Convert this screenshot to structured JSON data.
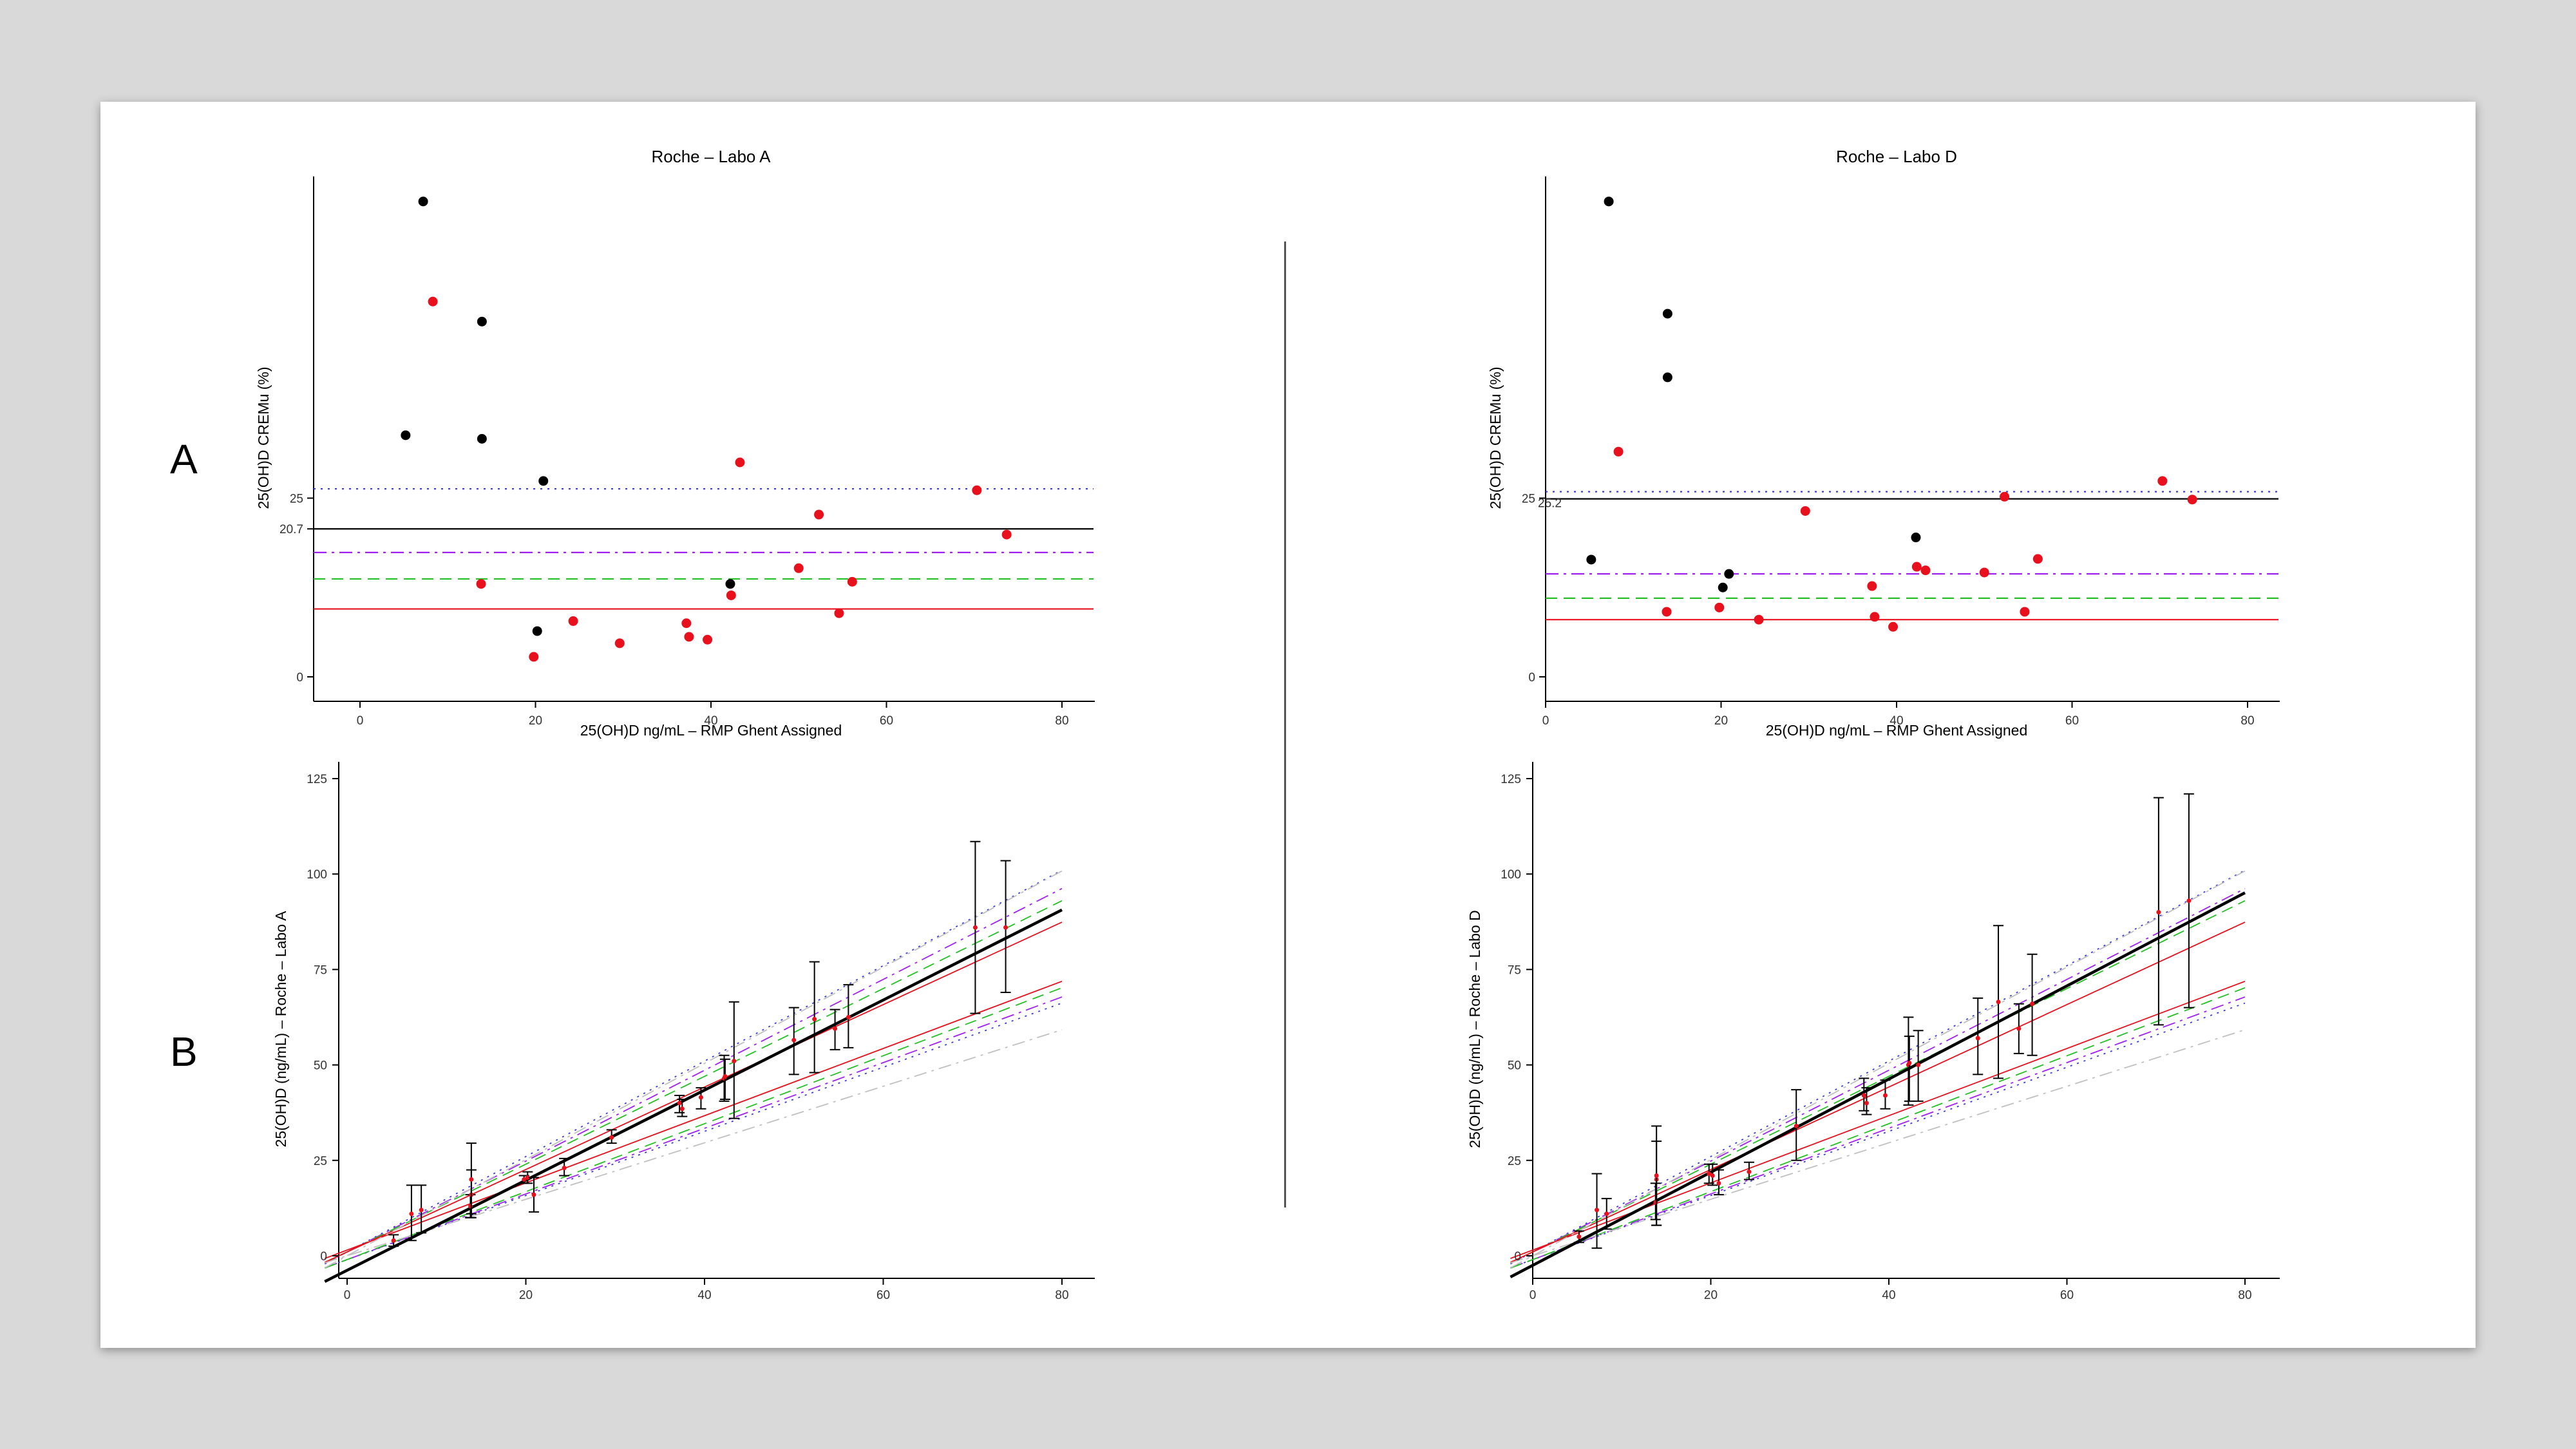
{
  "panels": {
    "a": "A",
    "b": "B"
  },
  "colors": {
    "black": "#000000",
    "red": "#e8101c",
    "blue": "#3a3ad8",
    "purple": "#a020f0",
    "green": "#22c022"
  },
  "chart_data": [
    {
      "type": "scatter",
      "title": "Roche – Labo A",
      "xlabel": "25(OH)D  ng/mL – RMP Ghent Assigned",
      "ylabel": "25(OH)D  CREMu (%)",
      "xlim": [
        0,
        80
      ],
      "xticks": [
        "0",
        "20",
        "40",
        "60",
        "80"
      ],
      "yticks": [
        {
          "value": 0,
          "label": "0"
        },
        {
          "value": 20.7,
          "label": "20.7"
        },
        {
          "value": 25,
          "label": "25"
        }
      ],
      "ylim": [
        0,
        70
      ],
      "reference_lines": [
        {
          "y": 26.3,
          "style": "dotted",
          "color": "#3a3ad8"
        },
        {
          "y": 20.7,
          "style": "solid",
          "color": "#000000"
        },
        {
          "y": 17.4,
          "style": "dashdot",
          "color": "#a020f0"
        },
        {
          "y": 13.7,
          "style": "dashed",
          "color": "#22c022"
        },
        {
          "y": 9.5,
          "style": "solid",
          "color": "#e8101c"
        }
      ],
      "series": [
        {
          "color": "#000000",
          "points": [
            [
              5.2,
              33.8
            ],
            [
              7.2,
              66.5
            ],
            [
              13.9,
              49.7
            ],
            [
              13.9,
              33.3
            ],
            [
              20.9,
              27.4
            ],
            [
              20.2,
              6.4
            ],
            [
              42.2,
              13.0
            ]
          ]
        },
        {
          "color": "#e8101c",
          "points": [
            [
              8.3,
              52.5
            ],
            [
              13.8,
              13.0
            ],
            [
              19.8,
              2.8
            ],
            [
              24.3,
              7.8
            ],
            [
              29.6,
              4.7
            ],
            [
              37.2,
              7.5
            ],
            [
              37.5,
              5.6
            ],
            [
              39.6,
              5.2
            ],
            [
              42.3,
              11.4
            ],
            [
              43.3,
              30.0
            ],
            [
              50.0,
              15.2
            ],
            [
              52.3,
              22.7
            ],
            [
              54.6,
              8.9
            ],
            [
              56.1,
              13.3
            ],
            [
              70.3,
              26.1
            ],
            [
              73.7,
              19.9
            ]
          ]
        }
      ]
    },
    {
      "type": "scatter",
      "title": "Roche – Labo D",
      "xlabel": "25(OH)D  ng/mL – RMP Ghent Assigned",
      "ylabel": "25(OH)D  CREMu (%)",
      "xlim": [
        0,
        80
      ],
      "xticks": [
        "0",
        "20",
        "40",
        "60",
        "80"
      ],
      "yticks": [
        {
          "value": 0,
          "label": "0"
        },
        {
          "value": 25,
          "label": "25"
        }
      ],
      "ylim": [
        0,
        70
      ],
      "reference_labels": [
        "25.2"
      ],
      "reference_lines": [
        {
          "y": 25.9,
          "style": "dotted",
          "color": "#3a3ad8"
        },
        {
          "y": 24.9,
          "style": "solid",
          "color": "#000000"
        },
        {
          "y": 14.4,
          "style": "dashdot",
          "color": "#a020f0"
        },
        {
          "y": 11.0,
          "style": "dashed",
          "color": "#22c022"
        },
        {
          "y": 8.0,
          "style": "solid",
          "color": "#e8101c"
        }
      ],
      "series": [
        {
          "color": "#000000",
          "points": [
            [
              7.2,
              66.5
            ],
            [
              13.9,
              50.8
            ],
            [
              13.9,
              41.9
            ],
            [
              5.2,
              16.4
            ],
            [
              20.2,
              12.5
            ],
            [
              20.9,
              14.4
            ],
            [
              42.2,
              19.5
            ]
          ]
        },
        {
          "color": "#e8101c",
          "points": [
            [
              8.3,
              31.5
            ],
            [
              13.8,
              9.1
            ],
            [
              19.8,
              9.7
            ],
            [
              24.3,
              8.0
            ],
            [
              29.6,
              23.2
            ],
            [
              37.2,
              12.7
            ],
            [
              37.5,
              8.4
            ],
            [
              39.6,
              7.0
            ],
            [
              42.3,
              15.4
            ],
            [
              43.3,
              14.9
            ],
            [
              50.0,
              14.6
            ],
            [
              52.3,
              25.2
            ],
            [
              54.6,
              9.1
            ],
            [
              56.1,
              16.5
            ],
            [
              70.3,
              27.4
            ],
            [
              73.7,
              24.8
            ]
          ]
        }
      ]
    },
    {
      "type": "scatter",
      "xlabel": "",
      "ylabel": "25(OH)D (ng/mL) – Roche – Labo A",
      "xlim": [
        0,
        80
      ],
      "ylim": [
        0,
        125
      ],
      "xticks": [
        "0",
        "20",
        "40",
        "60",
        "80"
      ],
      "yticks": [
        "0",
        "25",
        "50",
        "75",
        "100",
        "125"
      ],
      "regression": {
        "slope": 1.18,
        "intercept": -3.8
      },
      "reference_lines": [
        {
          "slope": 1.25,
          "intercept": 1.0,
          "style": "dotted",
          "color": "#3a3ad8"
        },
        {
          "slope": 0.84,
          "intercept": -1.0,
          "style": "dotted",
          "color": "#3a3ad8"
        },
        {
          "slope": 1.19,
          "intercept": 1.0,
          "style": "dashdot",
          "color": "#a020f0"
        },
        {
          "slope": 0.86,
          "intercept": -1.0,
          "style": "dashdot",
          "color": "#a020f0"
        },
        {
          "slope": 1.15,
          "intercept": 1.0,
          "style": "dashed",
          "color": "#22c022"
        },
        {
          "slope": 0.89,
          "intercept": -1.0,
          "style": "dashed",
          "color": "#22c022"
        },
        {
          "slope": 1.08,
          "intercept": 1.0,
          "style": "solid",
          "color": "#e8101c"
        },
        {
          "slope": 0.88,
          "intercept": 1.5,
          "style": "solid",
          "color": "#e8101c"
        },
        {
          "slope": 1.26,
          "intercept": 0.0,
          "style": "dashdot",
          "color": "#c0c0c0"
        },
        {
          "slope": 0.74,
          "intercept": 0.0,
          "style": "dashdot",
          "color": "#c0c0c0"
        }
      ],
      "points": [
        {
          "x": 5.2,
          "y": 4.0,
          "lo": 2.5,
          "hi": 5.5
        },
        {
          "x": 7.2,
          "y": 11.0,
          "lo": 4.0,
          "hi": 18.5
        },
        {
          "x": 8.3,
          "y": 12.0,
          "lo": 6.0,
          "hi": 18.5
        },
        {
          "x": 13.8,
          "y": 13.0,
          "lo": 10.0,
          "hi": 16.0
        },
        {
          "x": 13.9,
          "y": 16.0,
          "lo": 10.0,
          "hi": 22.5
        },
        {
          "x": 13.9,
          "y": 20.0,
          "lo": 11.0,
          "hi": 29.5
        },
        {
          "x": 19.8,
          "y": 20.0,
          "lo": 19.0,
          "hi": 21.0
        },
        {
          "x": 20.2,
          "y": 20.5,
          "lo": 19.0,
          "hi": 22.0
        },
        {
          "x": 20.9,
          "y": 16.0,
          "lo": 11.5,
          "hi": 20.5
        },
        {
          "x": 24.3,
          "y": 23.0,
          "lo": 21.0,
          "hi": 25.5
        },
        {
          "x": 29.6,
          "y": 31.0,
          "lo": 29.5,
          "hi": 33.0
        },
        {
          "x": 37.2,
          "y": 40.0,
          "lo": 37.5,
          "hi": 42.0
        },
        {
          "x": 37.5,
          "y": 38.5,
          "lo": 36.5,
          "hi": 41.0
        },
        {
          "x": 39.6,
          "y": 41.5,
          "lo": 38.5,
          "hi": 44.0
        },
        {
          "x": 42.2,
          "y": 46.5,
          "lo": 40.5,
          "hi": 52.5
        },
        {
          "x": 42.3,
          "y": 47.0,
          "lo": 41.0,
          "hi": 51.5
        },
        {
          "x": 43.3,
          "y": 51.0,
          "lo": 36.0,
          "hi": 66.5
        },
        {
          "x": 50.0,
          "y": 56.5,
          "lo": 47.5,
          "hi": 65.0
        },
        {
          "x": 52.3,
          "y": 62.0,
          "lo": 48.0,
          "hi": 77.0
        },
        {
          "x": 54.6,
          "y": 59.5,
          "lo": 54.0,
          "hi": 64.5
        },
        {
          "x": 56.1,
          "y": 62.5,
          "lo": 54.5,
          "hi": 71.0
        },
        {
          "x": 70.3,
          "y": 86.0,
          "lo": 63.5,
          "hi": 108.5
        },
        {
          "x": 73.7,
          "y": 86.0,
          "lo": 69.0,
          "hi": 103.5
        }
      ]
    },
    {
      "type": "scatter",
      "xlabel": "",
      "ylabel": "25(OH)D (ng/mL) – Roche – Labo D",
      "xlim": [
        0,
        80
      ],
      "ylim": [
        0,
        125
      ],
      "xticks": [
        "0",
        "20",
        "40",
        "60",
        "80"
      ],
      "yticks": [
        "0",
        "25",
        "50",
        "75",
        "100",
        "125"
      ],
      "regression": {
        "slope": 1.22,
        "intercept": -2.5
      },
      "reference_lines": [
        {
          "slope": 1.25,
          "intercept": 1.0,
          "style": "dotted",
          "color": "#3a3ad8"
        },
        {
          "slope": 0.84,
          "intercept": -1.0,
          "style": "dotted",
          "color": "#3a3ad8"
        },
        {
          "slope": 1.19,
          "intercept": 1.0,
          "style": "dashdot",
          "color": "#a020f0"
        },
        {
          "slope": 0.86,
          "intercept": -1.0,
          "style": "dashdot",
          "color": "#a020f0"
        },
        {
          "slope": 1.15,
          "intercept": 1.0,
          "style": "dashed",
          "color": "#22c022"
        },
        {
          "slope": 0.89,
          "intercept": -1.0,
          "style": "dashed",
          "color": "#22c022"
        },
        {
          "slope": 1.08,
          "intercept": 1.0,
          "style": "solid",
          "color": "#e8101c"
        },
        {
          "slope": 0.88,
          "intercept": 1.5,
          "style": "solid",
          "color": "#e8101c"
        },
        {
          "slope": 1.26,
          "intercept": 0.0,
          "style": "dashdot",
          "color": "#c0c0c0"
        },
        {
          "slope": 0.74,
          "intercept": 0.0,
          "style": "dashdot",
          "color": "#c0c0c0"
        }
      ],
      "points": [
        {
          "x": 5.2,
          "y": 5.0,
          "lo": 3.5,
          "hi": 6.5
        },
        {
          "x": 7.2,
          "y": 12.0,
          "lo": 2.0,
          "hi": 21.5
        },
        {
          "x": 8.3,
          "y": 11.0,
          "lo": 7.0,
          "hi": 15.0
        },
        {
          "x": 13.8,
          "y": 14.0,
          "lo": 9.5,
          "hi": 19.0
        },
        {
          "x": 13.9,
          "y": 20.0,
          "lo": 8.0,
          "hi": 30.0
        },
        {
          "x": 13.9,
          "y": 21.0,
          "lo": 8.0,
          "hi": 34.0
        },
        {
          "x": 19.8,
          "y": 21.5,
          "lo": 19.0,
          "hi": 24.0
        },
        {
          "x": 20.2,
          "y": 21.0,
          "lo": 18.5,
          "hi": 24.0
        },
        {
          "x": 20.9,
          "y": 19.0,
          "lo": 16.0,
          "hi": 22.5
        },
        {
          "x": 24.3,
          "y": 22.0,
          "lo": 20.0,
          "hi": 24.5
        },
        {
          "x": 29.6,
          "y": 34.0,
          "lo": 25.0,
          "hi": 43.5
        },
        {
          "x": 37.2,
          "y": 42.0,
          "lo": 38.0,
          "hi": 46.5
        },
        {
          "x": 37.5,
          "y": 40.0,
          "lo": 37.0,
          "hi": 44.0
        },
        {
          "x": 39.6,
          "y": 42.0,
          "lo": 38.5,
          "hi": 46.0
        },
        {
          "x": 42.2,
          "y": 50.0,
          "lo": 39.5,
          "hi": 62.5
        },
        {
          "x": 42.3,
          "y": 50.5,
          "lo": 40.5,
          "hi": 57.5
        },
        {
          "x": 43.3,
          "y": 50.0,
          "lo": 40.5,
          "hi": 59.0
        },
        {
          "x": 50.0,
          "y": 57.0,
          "lo": 47.5,
          "hi": 67.5
        },
        {
          "x": 52.3,
          "y": 66.5,
          "lo": 46.5,
          "hi": 86.5
        },
        {
          "x": 54.6,
          "y": 59.5,
          "lo": 53.0,
          "hi": 66.0
        },
        {
          "x": 56.1,
          "y": 66.0,
          "lo": 52.5,
          "hi": 79.0
        },
        {
          "x": 70.3,
          "y": 90.0,
          "lo": 60.5,
          "hi": 120.0
        },
        {
          "x": 73.7,
          "y": 93.0,
          "lo": 65.0,
          "hi": 121.0
        }
      ]
    }
  ]
}
